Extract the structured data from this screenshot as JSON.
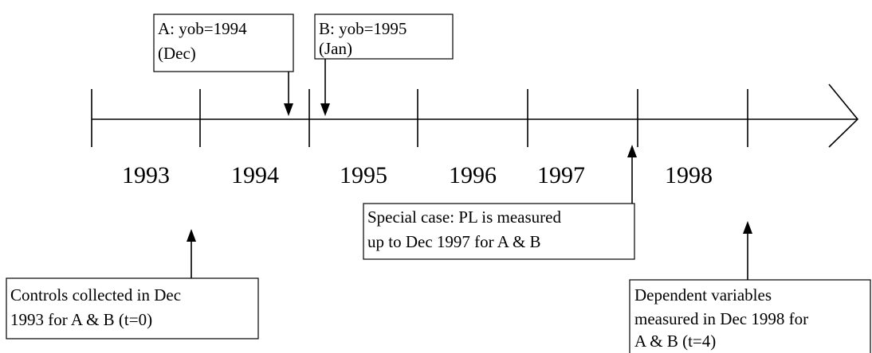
{
  "years": [
    "1993",
    "1994",
    "1995",
    "1996",
    "1997",
    "1998"
  ],
  "boxes": {
    "a": [
      "A: yob=1994",
      "(Dec)"
    ],
    "b": [
      "B: yob=1995",
      "(Jan)"
    ],
    "special": [
      "Special case: PL is measured",
      "up to Dec 1997 for A & B"
    ],
    "controls": [
      "Controls collected in Dec",
      "1993 for A & B (t=0)"
    ],
    "dependent": [
      "Dependent variables",
      "measured in Dec 1998 for",
      "A & B (t=4)"
    ]
  }
}
